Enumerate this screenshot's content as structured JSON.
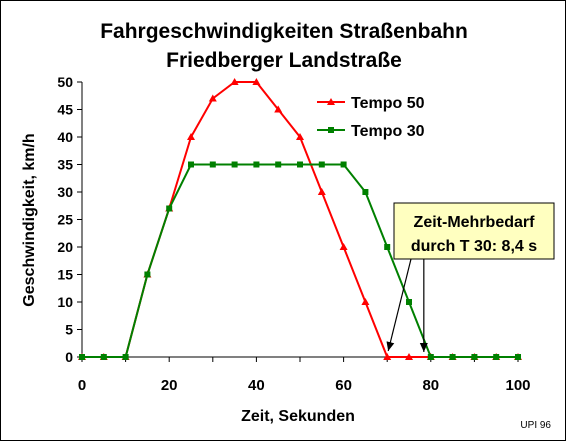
{
  "chart_data": {
    "type": "line",
    "title": [
      "Fahrgeschwindigkeiten Straßenbahn",
      "Friedberger Landstraße"
    ],
    "xlabel": "Zeit, Sekunden",
    "ylabel": "Geschwindigkeit, km/h",
    "xlim": [
      0,
      100
    ],
    "ylim": [
      0,
      50
    ],
    "xticks": [
      0,
      20,
      40,
      60,
      80,
      100
    ],
    "yticks": [
      0,
      5,
      10,
      15,
      20,
      25,
      30,
      35,
      40,
      45,
      50
    ],
    "grid": false,
    "legend_position": "top-right",
    "series": [
      {
        "name": "Tempo 50",
        "color": "#ff0000",
        "marker": "triangle",
        "x": [
          0,
          5,
          10,
          15,
          20,
          25,
          30,
          35,
          40,
          45,
          50,
          55,
          60,
          65,
          70,
          75,
          80,
          85,
          90,
          95,
          100
        ],
        "y": [
          0,
          0,
          0,
          15,
          27,
          40,
          47,
          50,
          50,
          45,
          40,
          30,
          20,
          10,
          0,
          0,
          0,
          0,
          0,
          0,
          0
        ]
      },
      {
        "name": "Tempo 30",
        "color": "#008000",
        "marker": "square",
        "x": [
          0,
          5,
          10,
          15,
          20,
          25,
          30,
          35,
          40,
          45,
          50,
          55,
          60,
          65,
          70,
          75,
          80,
          85,
          90,
          95,
          100
        ],
        "y": [
          0,
          0,
          0,
          15,
          27,
          35,
          35,
          35,
          35,
          35,
          35,
          35,
          35,
          30,
          20,
          10,
          0,
          0,
          0,
          0,
          0
        ]
      }
    ],
    "annotation": {
      "lines": [
        "Zeit-Mehrbedarf",
        "durch T 30: 8,4 s"
      ],
      "fill": "#ffffc0",
      "arrow_targets": [
        70,
        78.4
      ]
    },
    "footnote": "UPI 96"
  }
}
